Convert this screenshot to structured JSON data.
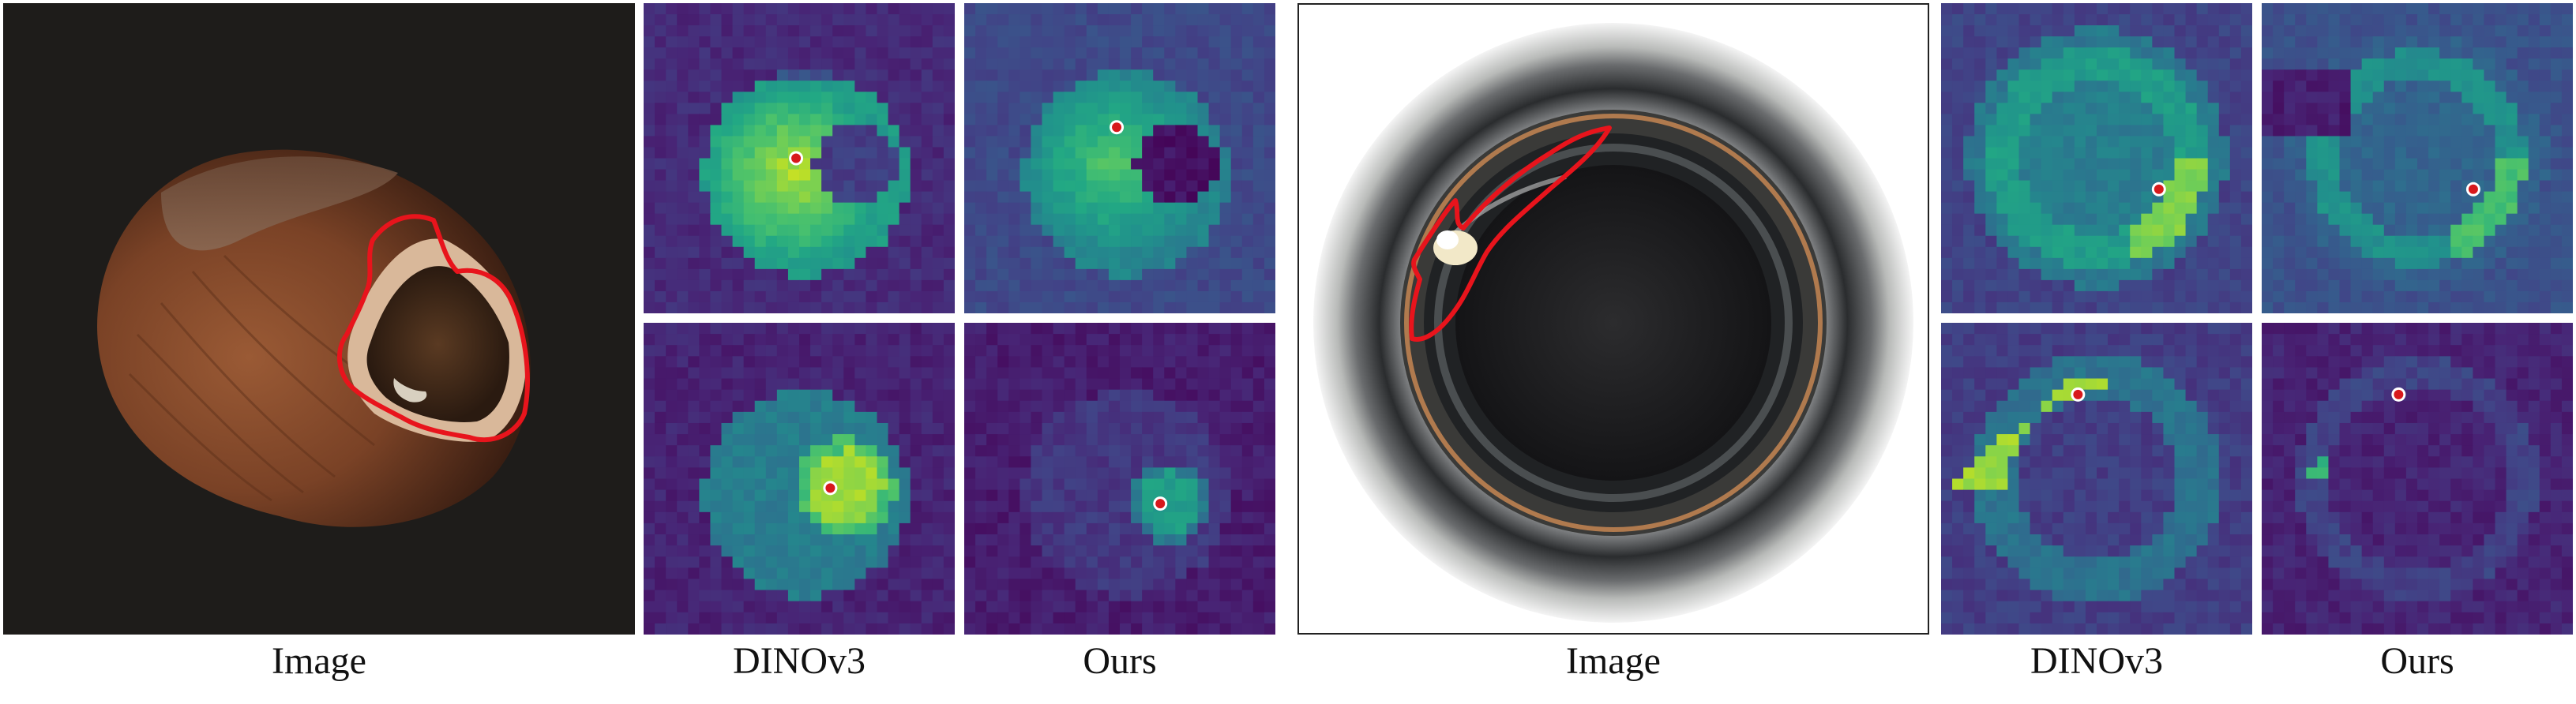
{
  "figure": {
    "groups": [
      {
        "name": "hazelnut",
        "captions": {
          "image": "Image",
          "dinov3": "DINOv3",
          "ours": "Ours"
        }
      },
      {
        "name": "bottle",
        "captions": {
          "image": "Image",
          "dinov3": "DINOv3",
          "ours": "Ours"
        }
      }
    ],
    "colors": {
      "defect_outline": "#e8141c",
      "query_point": "#d7191c",
      "viridis_low": "#440154",
      "viridis_mid": "#21918c",
      "viridis_high": "#fde725",
      "hazel_background": "#1e1c1a",
      "bottle_background": "#ffffff"
    }
  }
}
